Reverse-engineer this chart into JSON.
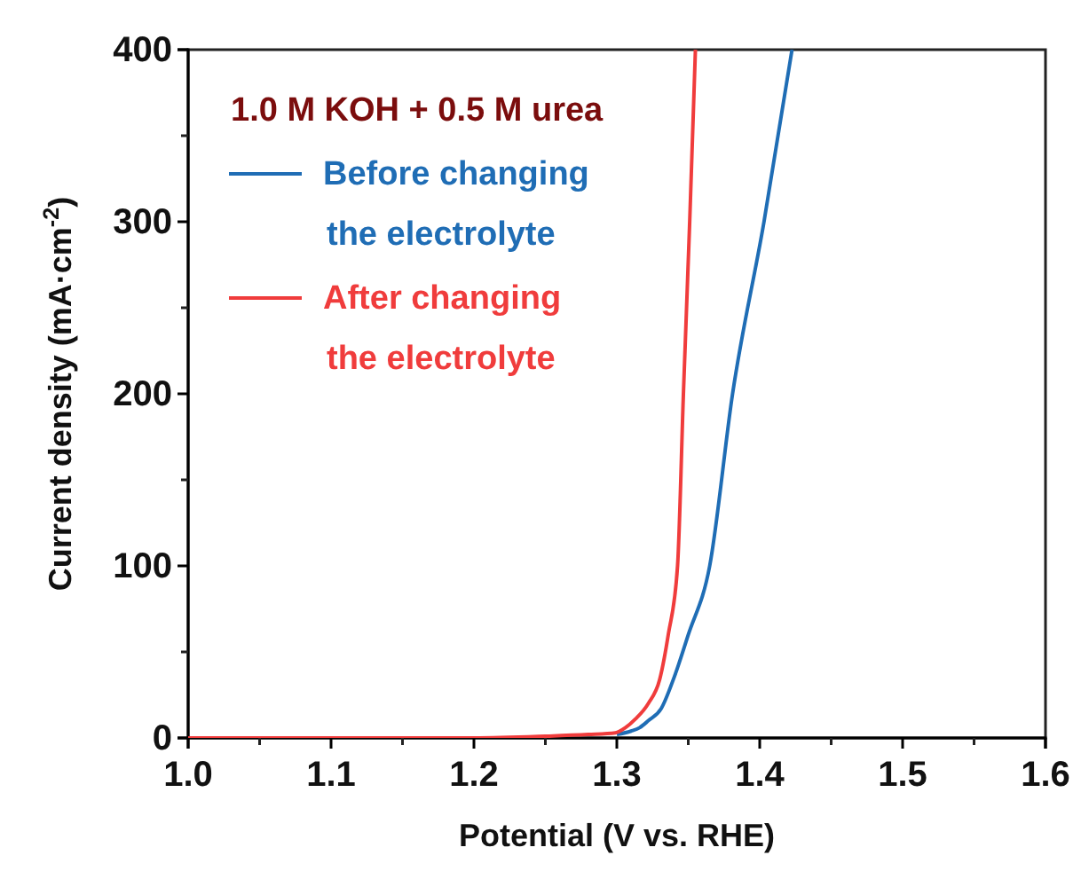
{
  "chart_data": {
    "type": "line",
    "xlabel": "Potential (V vs. RHE)",
    "ylabel": "Current density (mA·cm$^{-2}$)",
    "legend_title": "1.0 M KOH + 0.5 M urea",
    "legend": "top left",
    "xlim": [
      1.0,
      1.6
    ],
    "xticks": [
      {
        "value": 1.0,
        "label": "1.0"
      },
      1.1,
      1.2,
      1.3,
      1.4,
      1.5,
      1.6
    ],
    "ylim": [
      0,
      400
    ],
    "yticks": [
      0,
      100,
      200,
      300,
      400
    ],
    "line_style": "solid",
    "marker": "none",
    "grid": false,
    "series": [
      {
        "name": "Before changing the electrolyte",
        "color": "#1f6db5",
        "x": [
          1.3,
          1.31,
          1.316,
          1.322,
          1.331,
          1.34,
          1.35,
          1.365,
          1.381,
          1.403,
          1.4226
        ],
        "values": [
          2,
          4,
          6,
          10,
          17,
          35,
          60,
          100,
          200,
          300,
          400
        ]
      },
      {
        "name": "After changing the electrolyte",
        "color": "#f03c3c",
        "x": [
          1.0,
          1.1,
          1.2,
          1.25,
          1.28,
          1.299,
          1.306,
          1.313,
          1.322,
          1.33,
          1.336,
          1.3425,
          1.3466,
          1.351,
          1.355
        ],
        "values": [
          0,
          0,
          0,
          1,
          2,
          3,
          6,
          11,
          20,
          34,
          60,
          100,
          200,
          300,
          400
        ]
      }
    ]
  }
}
